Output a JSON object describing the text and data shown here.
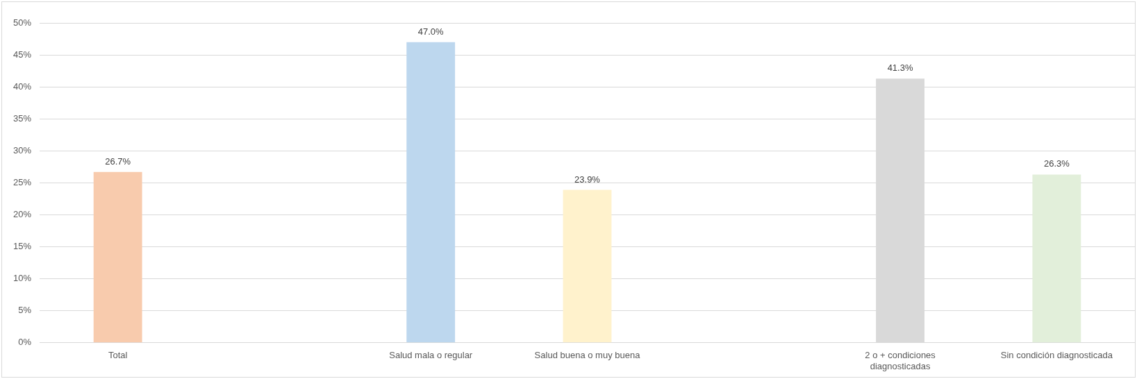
{
  "chart_data": {
    "type": "bar",
    "categories": [
      "Total",
      null,
      "Salud mala o regular",
      "Salud buena o muy buena",
      null,
      "2 o + condiciones diagnosticadas",
      "Sin condición diagnosticada"
    ],
    "values": [
      26.7,
      null,
      47.0,
      23.9,
      null,
      41.3,
      26.3
    ],
    "colors": [
      "#f8cbad",
      null,
      "#bdd7ee",
      "#fff2cc",
      null,
      "#d9d9d9",
      "#e2efda"
    ],
    "value_labels": [
      "26.7%",
      null,
      "47.0%",
      "23.9%",
      null,
      "41.3%",
      "26.3%"
    ],
    "ylim": [
      0,
      50
    ],
    "yticks": [
      {
        "value": 0,
        "label": "0%"
      },
      {
        "value": 5,
        "label": "5%"
      },
      {
        "value": 10,
        "label": "10%"
      },
      {
        "value": 15,
        "label": "15%"
      },
      {
        "value": 20,
        "label": "20%"
      },
      {
        "value": 25,
        "label": "25%"
      },
      {
        "value": 30,
        "label": "30%"
      },
      {
        "value": 35,
        "label": "35%"
      },
      {
        "value": 40,
        "label": "40%"
      },
      {
        "value": 45,
        "label": "45%"
      },
      {
        "value": 50,
        "label": "50%"
      }
    ],
    "grid": "y",
    "legend": false
  }
}
